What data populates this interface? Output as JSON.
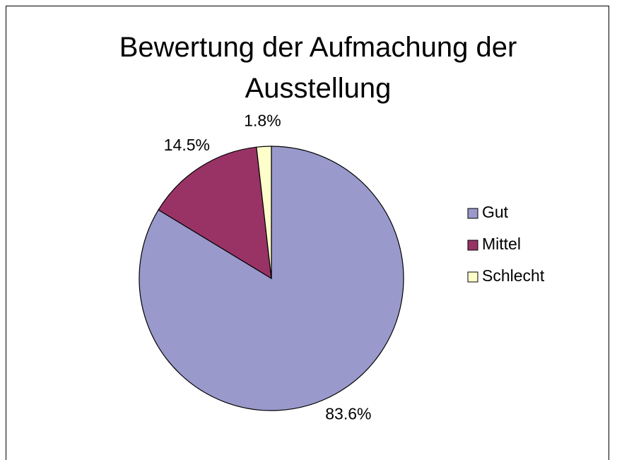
{
  "chart_data": {
    "type": "pie",
    "title": "Bewertung der Aufmachung der Ausstellung",
    "categories": [
      "Gut",
      "Mittel",
      "Schlecht"
    ],
    "values": [
      83.6,
      14.5,
      1.8
    ],
    "value_labels": [
      "83.6%",
      "14.5%",
      "1.8%"
    ],
    "colors": [
      "#9999cc",
      "#993366",
      "#ffffcc"
    ],
    "legend": "right"
  }
}
